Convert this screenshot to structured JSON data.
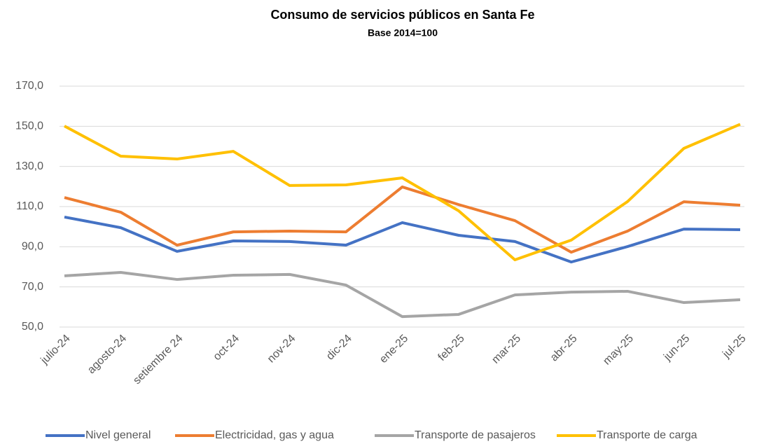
{
  "chart_data": {
    "type": "line",
    "title": "Consumo de servicios públicos en Santa Fe",
    "subtitle": "Base 2014=100",
    "categories": [
      "julio-24",
      "agosto-24",
      "setiembre 24",
      "oct-24",
      "nov-24",
      "dic-24",
      "ene-25",
      "feb-25",
      "mar-25",
      "abr-25",
      "may-25",
      "jun-25",
      "jul-25"
    ],
    "series": [
      {
        "name": "Nivel general",
        "color": "#4472c4",
        "values": [
          104.8,
          99.5,
          87.7,
          92.9,
          92.6,
          90.8,
          102.0,
          95.7,
          92.6,
          82.4,
          90.1,
          98.8,
          98.5
        ]
      },
      {
        "name": "Electricidad, gas y agua",
        "color": "#ed7d31",
        "values": [
          114.5,
          107.2,
          90.8,
          97.4,
          97.8,
          97.4,
          119.8,
          111.0,
          103.0,
          87.3,
          97.8,
          112.4,
          110.7
        ]
      },
      {
        "name": "Transporte de pasajeros",
        "color": "#a5a5a5",
        "values": [
          75.5,
          77.2,
          73.7,
          75.8,
          76.2,
          70.9,
          55.2,
          56.3,
          66.0,
          67.4,
          67.8,
          62.2,
          63.6
        ]
      },
      {
        "name": "Transporte de carga",
        "color": "#ffc000",
        "values": [
          150.1,
          135.1,
          133.7,
          137.5,
          120.5,
          120.8,
          124.3,
          107.9,
          83.5,
          93.3,
          112.5,
          139.0,
          151.0
        ]
      }
    ],
    "ylim": [
      50,
      170
    ],
    "yticks": [
      {
        "value": 50,
        "label": "50,0"
      },
      {
        "value": 70,
        "label": "70,0"
      },
      {
        "value": 90,
        "label": "90,0"
      },
      {
        "value": 110,
        "label": "110,0"
      },
      {
        "value": 130,
        "label": "130,0"
      },
      {
        "value": 150,
        "label": "150,0"
      },
      {
        "value": 170,
        "label": "170,0"
      }
    ],
    "grid": true,
    "legend": "bottom"
  }
}
